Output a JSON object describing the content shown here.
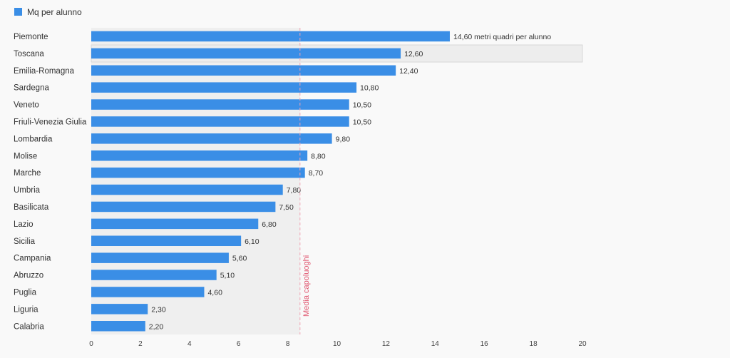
{
  "legend": {
    "label": "Mq per alunno",
    "color": "#3a8ee6"
  },
  "chart_data": {
    "type": "bar",
    "orientation": "horizontal",
    "categories": [
      "Piemonte",
      "Toscana",
      "Emilia-Romagna",
      "Sardegna",
      "Veneto",
      "Friuli-Venezia Giulia",
      "Lombardia",
      "Molise",
      "Marche",
      "Umbria",
      "Basilicata",
      "Lazio",
      "Sicilia",
      "Campania",
      "Abruzzo",
      "Puglia",
      "Liguria",
      "Calabria"
    ],
    "series": [
      {
        "name": "Mq per alunno",
        "color": "#3a8ee6",
        "values": [
          14.6,
          12.6,
          12.4,
          10.8,
          10.5,
          10.5,
          9.8,
          8.8,
          8.7,
          7.8,
          7.5,
          6.8,
          6.1,
          5.6,
          5.1,
          4.6,
          2.3,
          2.2
        ]
      }
    ],
    "data_labels": [
      "14,60 metri quadri per alunno",
      "12,60",
      "12,40",
      "10,80",
      "10,50",
      "10,50",
      "9,80",
      "8,80",
      "8,70",
      "7,80",
      "7,50",
      "6,80",
      "6,10",
      "5,60",
      "5,10",
      "4,60",
      "2,30",
      "2,20"
    ],
    "xlim": [
      0,
      20
    ],
    "x_ticks": [
      0,
      2,
      4,
      6,
      8,
      10,
      12,
      14,
      16,
      18,
      20
    ],
    "x_tick_labels": [
      "0",
      "2",
      "4",
      "6",
      "8",
      "10",
      "12",
      "14",
      "16",
      "18",
      "20"
    ],
    "reference_line": {
      "value": 8.5,
      "label": "Media capoluoghi",
      "color": "#e0556f"
    },
    "highlighted_category": "Toscana",
    "grid": false,
    "legend_position": "top-left"
  }
}
